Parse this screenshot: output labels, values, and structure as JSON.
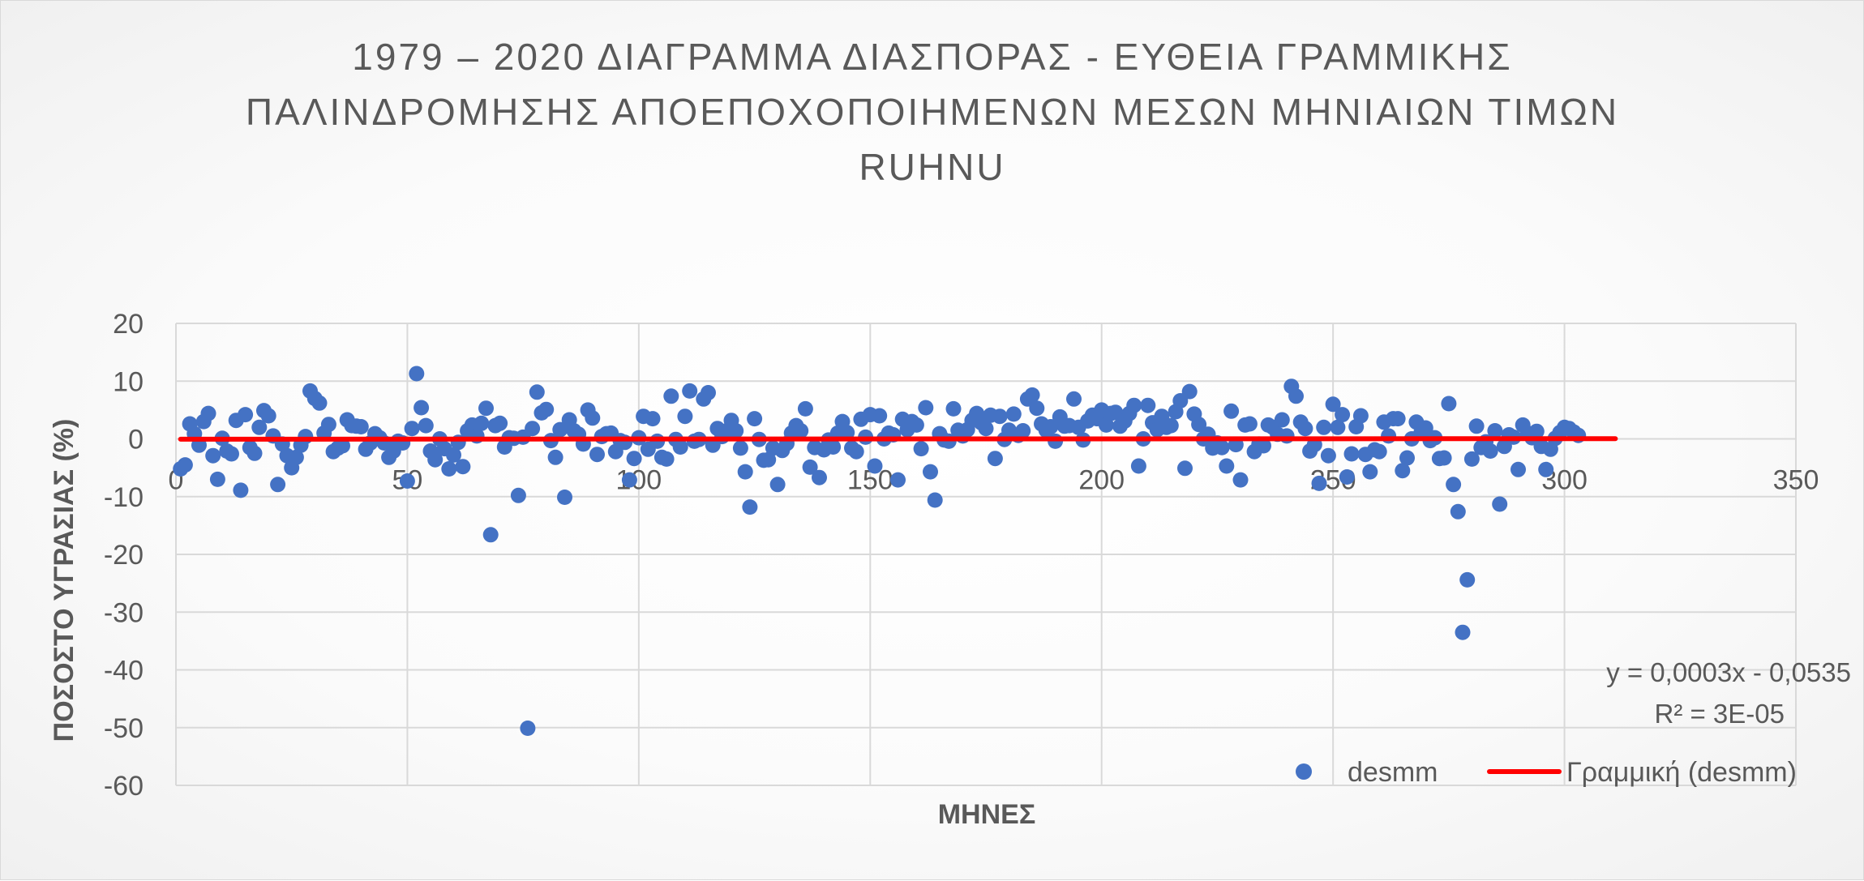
{
  "chart_data": {
    "type": "scatter",
    "title_lines": [
      "1979 – 2020 ΔΙΑΓΡΑΜΜΑ ΔΙΑΣΠΟΡΑΣ - ΕΥΘΕΙΑ ΓΡΑΜΜΙΚΗΣ",
      "ΠΑΛΙΝΔΡΟΜΗΣΗΣ ΑΠΟΕΠΟΧΟΠΟΙΗΜΕΝΩΝ ΜΕΣΩΝ ΜΗΝΙΑΙΩΝ ΤΙΜΩΝ",
      "RUHNU"
    ],
    "xlabel": "ΜΗΝΕΣ",
    "ylabel": "ΠΟΣΟΣΤΟ ΥΓΡΑΣΙΑΣ (%)",
    "xlim": [
      0,
      350
    ],
    "ylim": [
      -60,
      20
    ],
    "x_ticks": [
      0,
      50,
      100,
      150,
      200,
      250,
      300,
      350
    ],
    "y_ticks": [
      20,
      10,
      0,
      -10,
      -20,
      -30,
      -40,
      -50,
      -60
    ],
    "grid": true,
    "legend_position": "bottom-right",
    "series": [
      {
        "name": "desmm",
        "color": "#4472c4",
        "y": [
          -5.2,
          -4.5,
          2.6,
          0.9,
          -1.1,
          3.0,
          4.4,
          -2.9,
          -7.0,
          0.1,
          -2.1,
          -2.6,
          3.2,
          -8.9,
          4.2,
          -1.5,
          -2.5,
          2.0,
          4.9,
          4.0,
          0.5,
          -7.9,
          -0.9,
          -2.9,
          -5.0,
          -3.2,
          -1.1,
          0.4,
          8.3,
          7.0,
          6.2,
          1.0,
          2.5,
          -2.2,
          -1.6,
          -1.2,
          3.3,
          2.3,
          2.2,
          2.1,
          -1.8,
          -0.7,
          0.9,
          0.2,
          -0.7,
          -3.2,
          -2.1,
          -0.4,
          -0.7,
          -7.3,
          1.8,
          11.3,
          5.4,
          2.3,
          -2.1,
          -3.6,
          0.0,
          -1.7,
          -5.2,
          -2.8,
          -0.6,
          -4.8,
          1.4,
          2.4,
          0.5,
          2.7,
          5.3,
          -16.6,
          2.3,
          2.7,
          -1.4,
          0.2,
          0.1,
          -9.8,
          0.3,
          -50.1,
          1.8,
          8.1,
          4.5,
          5.1,
          -0.3,
          -3.2,
          1.6,
          -10.1,
          3.3,
          1.4,
          0.8,
          -0.9,
          5.0,
          3.6,
          -2.7,
          0.4,
          0.9,
          1.0,
          -2.2,
          -0.3,
          -0.6,
          -7.1,
          -3.4,
          0.2,
          3.9,
          -1.8,
          3.5,
          -0.4,
          -3.2,
          -3.5,
          7.4,
          -0.1,
          -1.4,
          3.9,
          8.3,
          -0.4,
          -0.1,
          6.9,
          8.0,
          -1.1,
          1.8,
          0.4,
          1.4,
          3.2,
          1.4,
          -1.6,
          -5.7,
          -11.8,
          3.5,
          -0.1,
          -3.7,
          -3.6,
          -1.6,
          -7.9,
          -2.0,
          -0.8,
          1.0,
          2.3,
          1.4,
          5.2,
          -4.9,
          -1.5,
          -6.7,
          -1.9,
          -0.2,
          -1.4,
          1.0,
          3.0,
          1.1,
          -1.6,
          -2.2,
          3.4,
          0.3,
          4.2,
          -4.7,
          4.0,
          0.0,
          1.0,
          0.7,
          -7.1,
          3.4,
          1.6,
          3.0,
          2.4,
          -1.7,
          5.4,
          -5.7,
          -10.6,
          0.9,
          -0.2,
          -0.4,
          5.2,
          1.5,
          0.5,
          1.6,
          3.2,
          4.4,
          2.8,
          1.8,
          4.1,
          -3.4,
          3.9,
          -0.1,
          1.5,
          4.3,
          0.6,
          1.4,
          6.9,
          7.6,
          5.3,
          2.6,
          1.5,
          2.1,
          -0.4,
          3.8,
          2.2,
          2.3,
          6.9,
          2.0,
          -0.2,
          3.1,
          4.1,
          3.5,
          5.0,
          2.4,
          4.4,
          4.6,
          2.2,
          3.1,
          4.4,
          5.8,
          -4.7,
          0.0,
          5.8,
          2.8,
          1.6,
          3.9,
          2.0,
          2.3,
          4.7,
          6.6,
          -5.1,
          8.2,
          4.3,
          2.5,
          0.0,
          0.8,
          -1.6,
          -0.7,
          -1.5,
          -4.7,
          4.8,
          -1.0,
          -7.1,
          2.4,
          2.6,
          -2.2,
          -0.9,
          -1.2,
          2.4,
          2.0,
          0.8,
          3.3,
          0.5,
          9.1,
          7.4,
          2.9,
          1.8,
          -2.1,
          -1.0,
          -7.7,
          2.0,
          -2.9,
          6.0,
          2.0,
          4.2,
          -6.6,
          -2.6,
          2.1,
          4.0,
          -2.7,
          -5.7,
          -1.9,
          -2.2,
          2.9,
          0.5,
          3.5,
          3.5,
          -5.5,
          -3.3,
          0.0,
          2.9,
          1.0,
          1.9,
          -0.3,
          0.2,
          -3.4,
          -3.3,
          6.1,
          -7.9,
          -12.6,
          -33.5,
          -24.4,
          -3.5,
          2.2,
          -1.5,
          -0.5,
          -2.1,
          1.4,
          -11.3,
          -1.3,
          0.7,
          0.3,
          -5.3,
          2.4,
          1.0,
          0.2,
          1.3,
          -1.3,
          -5.3,
          -1.8,
          0.1,
          1.1,
          2.0,
          1.8,
          1.2,
          0.6
        ],
        "x_start": 1,
        "x_step": 1
      }
    ],
    "trendline": {
      "name": "Γραμμική (desmm)",
      "type": "linear",
      "slope": 0.0003,
      "intercept": -0.0535,
      "x_range": [
        1,
        311
      ],
      "color": "#ff0000",
      "equation_text": "y = 0,0003x - 0,0535",
      "r2_text": "R² = 3E-05"
    }
  }
}
